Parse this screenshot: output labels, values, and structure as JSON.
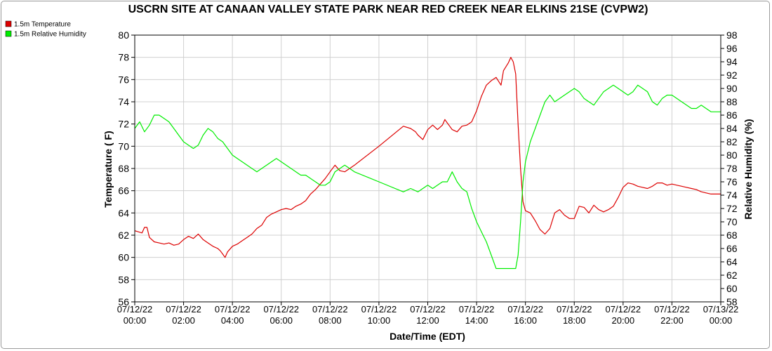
{
  "chart_data": {
    "type": "line",
    "title": "USCRN SITE AT CANAAN VALLEY STATE PARK NEAR RED CREEK NEAR ELKINS 21SE (CVPW2)",
    "xlabel": "Date/Time (EDT)",
    "ylabel_left": "Temperature ( F)",
    "ylabel_right": "Relative Humidity (%)",
    "x_ticks": [
      {
        "date": "07/12/22",
        "time": "00:00"
      },
      {
        "date": "07/12/22",
        "time": "02:00"
      },
      {
        "date": "07/12/22",
        "time": "04:00"
      },
      {
        "date": "07/12/22",
        "time": "06:00"
      },
      {
        "date": "07/12/22",
        "time": "08:00"
      },
      {
        "date": "07/12/22",
        "time": "10:00"
      },
      {
        "date": "07/12/22",
        "time": "12:00"
      },
      {
        "date": "07/12/22",
        "time": "14:00"
      },
      {
        "date": "07/12/22",
        "time": "16:00"
      },
      {
        "date": "07/12/22",
        "time": "18:00"
      },
      {
        "date": "07/12/22",
        "time": "20:00"
      },
      {
        "date": "07/12/22",
        "time": "22:00"
      },
      {
        "date": "07/13/22",
        "time": "00:00"
      }
    ],
    "x_range_hours": [
      0,
      24
    ],
    "ylim_left": [
      56,
      80
    ],
    "yticks_left": [
      56,
      58,
      60,
      62,
      64,
      66,
      68,
      70,
      72,
      74,
      76,
      78,
      80
    ],
    "ylim_right": [
      58,
      98
    ],
    "yticks_right": [
      58,
      60,
      62,
      64,
      66,
      68,
      70,
      72,
      74,
      76,
      78,
      80,
      82,
      84,
      86,
      88,
      90,
      92,
      94,
      96,
      98
    ],
    "grid": true,
    "legend_position": "top-left",
    "series": [
      {
        "name": "1.5m Temperature",
        "axis": "left",
        "color": "#dd0000",
        "points": [
          [
            0,
            62.4
          ],
          [
            0.3,
            62.2
          ],
          [
            0.4,
            62.7
          ],
          [
            0.5,
            62.7
          ],
          [
            0.6,
            61.8
          ],
          [
            0.8,
            61.4
          ],
          [
            1.0,
            61.3
          ],
          [
            1.2,
            61.2
          ],
          [
            1.4,
            61.3
          ],
          [
            1.6,
            61.1
          ],
          [
            1.8,
            61.2
          ],
          [
            2.0,
            61.6
          ],
          [
            2.2,
            61.9
          ],
          [
            2.4,
            61.7
          ],
          [
            2.6,
            62.1
          ],
          [
            2.8,
            61.6
          ],
          [
            3.0,
            61.3
          ],
          [
            3.2,
            61.0
          ],
          [
            3.4,
            60.8
          ],
          [
            3.5,
            60.6
          ],
          [
            3.6,
            60.3
          ],
          [
            3.7,
            60.0
          ],
          [
            3.8,
            60.5
          ],
          [
            4.0,
            61.0
          ],
          [
            4.2,
            61.2
          ],
          [
            4.4,
            61.5
          ],
          [
            4.6,
            61.8
          ],
          [
            4.8,
            62.1
          ],
          [
            5.0,
            62.6
          ],
          [
            5.2,
            62.9
          ],
          [
            5.4,
            63.6
          ],
          [
            5.6,
            63.9
          ],
          [
            5.8,
            64.1
          ],
          [
            6.0,
            64.3
          ],
          [
            6.2,
            64.4
          ],
          [
            6.4,
            64.3
          ],
          [
            6.6,
            64.6
          ],
          [
            6.8,
            64.8
          ],
          [
            7.0,
            65.1
          ],
          [
            7.2,
            65.7
          ],
          [
            7.4,
            66.1
          ],
          [
            7.6,
            66.6
          ],
          [
            7.8,
            67.1
          ],
          [
            8.0,
            67.7
          ],
          [
            8.2,
            68.3
          ],
          [
            8.4,
            67.8
          ],
          [
            8.6,
            67.7
          ],
          [
            8.8,
            68.0
          ],
          [
            9.0,
            68.3
          ],
          [
            10.0,
            70.0
          ],
          [
            11.0,
            71.8
          ],
          [
            11.3,
            71.6
          ],
          [
            11.5,
            71.3
          ],
          [
            11.6,
            71.0
          ],
          [
            11.8,
            70.6
          ],
          [
            12.0,
            71.5
          ],
          [
            12.2,
            71.9
          ],
          [
            12.4,
            71.5
          ],
          [
            12.6,
            71.9
          ],
          [
            12.7,
            72.4
          ],
          [
            12.8,
            72.1
          ],
          [
            12.9,
            71.8
          ],
          [
            13.0,
            71.5
          ],
          [
            13.2,
            71.3
          ],
          [
            13.4,
            71.8
          ],
          [
            13.6,
            71.9
          ],
          [
            13.8,
            72.2
          ],
          [
            14.0,
            73.2
          ],
          [
            14.2,
            74.5
          ],
          [
            14.4,
            75.5
          ],
          [
            14.6,
            75.9
          ],
          [
            14.8,
            76.2
          ],
          [
            15.0,
            75.5
          ],
          [
            15.1,
            76.8
          ],
          [
            15.3,
            77.5
          ],
          [
            15.4,
            78.0
          ],
          [
            15.5,
            77.6
          ],
          [
            15.6,
            76.5
          ],
          [
            15.7,
            72.0
          ],
          [
            15.8,
            68.0
          ],
          [
            15.9,
            65.0
          ],
          [
            16.0,
            64.2
          ],
          [
            16.2,
            64.0
          ],
          [
            16.4,
            63.3
          ],
          [
            16.6,
            62.5
          ],
          [
            16.8,
            62.1
          ],
          [
            17.0,
            62.6
          ],
          [
            17.2,
            64.0
          ],
          [
            17.4,
            64.3
          ],
          [
            17.6,
            63.8
          ],
          [
            17.8,
            63.5
          ],
          [
            18.0,
            63.5
          ],
          [
            18.2,
            64.6
          ],
          [
            18.4,
            64.5
          ],
          [
            18.6,
            64.0
          ],
          [
            18.8,
            64.7
          ],
          [
            19.0,
            64.3
          ],
          [
            19.2,
            64.1
          ],
          [
            19.4,
            64.3
          ],
          [
            19.6,
            64.6
          ],
          [
            19.8,
            65.4
          ],
          [
            20.0,
            66.3
          ],
          [
            20.2,
            66.7
          ],
          [
            20.4,
            66.6
          ],
          [
            20.6,
            66.4
          ],
          [
            20.8,
            66.3
          ],
          [
            21.0,
            66.2
          ],
          [
            21.2,
            66.4
          ],
          [
            21.4,
            66.7
          ],
          [
            21.6,
            66.7
          ],
          [
            21.8,
            66.5
          ],
          [
            22.0,
            66.6
          ],
          [
            22.2,
            66.5
          ],
          [
            22.4,
            66.4
          ],
          [
            22.6,
            66.3
          ],
          [
            22.8,
            66.2
          ],
          [
            23.0,
            66.1
          ],
          [
            23.2,
            65.9
          ],
          [
            23.4,
            65.8
          ],
          [
            23.6,
            65.7
          ],
          [
            24.0,
            65.7
          ]
        ]
      },
      {
        "name": "1.5m Relative Humidity",
        "axis": "right",
        "color": "#00ee00",
        "points": [
          [
            0,
            84.0
          ],
          [
            0.2,
            85.0
          ],
          [
            0.4,
            83.5
          ],
          [
            0.6,
            84.5
          ],
          [
            0.8,
            86.0
          ],
          [
            1.0,
            86.0
          ],
          [
            1.2,
            85.5
          ],
          [
            1.4,
            85.0
          ],
          [
            1.6,
            84.0
          ],
          [
            1.8,
            83.0
          ],
          [
            2.0,
            82.0
          ],
          [
            2.2,
            81.5
          ],
          [
            2.4,
            81.0
          ],
          [
            2.6,
            81.5
          ],
          [
            2.8,
            83.0
          ],
          [
            3.0,
            84.0
          ],
          [
            3.2,
            83.5
          ],
          [
            3.4,
            82.5
          ],
          [
            3.6,
            82.0
          ],
          [
            3.8,
            81.0
          ],
          [
            4.0,
            80.0
          ],
          [
            4.2,
            79.5
          ],
          [
            4.4,
            79.0
          ],
          [
            4.6,
            78.5
          ],
          [
            4.8,
            78.0
          ],
          [
            5.0,
            77.5
          ],
          [
            5.2,
            78.0
          ],
          [
            5.4,
            78.5
          ],
          [
            5.6,
            79.0
          ],
          [
            5.8,
            79.5
          ],
          [
            6.0,
            79.0
          ],
          [
            6.2,
            78.5
          ],
          [
            6.4,
            78.0
          ],
          [
            6.6,
            77.5
          ],
          [
            6.8,
            77.0
          ],
          [
            7.0,
            77.0
          ],
          [
            7.2,
            76.5
          ],
          [
            7.4,
            76.0
          ],
          [
            7.6,
            75.5
          ],
          [
            7.8,
            75.5
          ],
          [
            8.0,
            76.0
          ],
          [
            8.2,
            77.5
          ],
          [
            8.4,
            78.0
          ],
          [
            8.6,
            78.5
          ],
          [
            8.8,
            78.0
          ],
          [
            9.0,
            77.5
          ],
          [
            10.0,
            76.0
          ],
          [
            11.0,
            74.5
          ],
          [
            11.3,
            75.0
          ],
          [
            11.6,
            74.5
          ],
          [
            11.8,
            75.0
          ],
          [
            12.0,
            75.5
          ],
          [
            12.2,
            75.0
          ],
          [
            12.4,
            75.5
          ],
          [
            12.6,
            76.0
          ],
          [
            12.8,
            76.0
          ],
          [
            13.0,
            77.5
          ],
          [
            13.2,
            76.0
          ],
          [
            13.4,
            75.0
          ],
          [
            13.6,
            74.5
          ],
          [
            13.8,
            72.0
          ],
          [
            14.0,
            70.0
          ],
          [
            14.2,
            68.5
          ],
          [
            14.4,
            67.0
          ],
          [
            14.6,
            65.0
          ],
          [
            14.8,
            63.0
          ],
          [
            15.0,
            63.0
          ],
          [
            15.2,
            63.0
          ],
          [
            15.4,
            63.0
          ],
          [
            15.6,
            63.0
          ],
          [
            15.7,
            65.0
          ],
          [
            15.8,
            70.0
          ],
          [
            15.9,
            76.0
          ],
          [
            16.0,
            79.0
          ],
          [
            16.2,
            82.0
          ],
          [
            16.4,
            84.0
          ],
          [
            16.6,
            86.0
          ],
          [
            16.8,
            88.0
          ],
          [
            17.0,
            89.0
          ],
          [
            17.2,
            88.0
          ],
          [
            17.4,
            88.5
          ],
          [
            17.6,
            89.0
          ],
          [
            17.8,
            89.5
          ],
          [
            18.0,
            90.0
          ],
          [
            18.2,
            89.5
          ],
          [
            18.4,
            88.5
          ],
          [
            18.6,
            88.0
          ],
          [
            18.8,
            87.5
          ],
          [
            19.0,
            88.5
          ],
          [
            19.2,
            89.5
          ],
          [
            19.4,
            90.0
          ],
          [
            19.6,
            90.5
          ],
          [
            19.8,
            90.0
          ],
          [
            20.0,
            89.5
          ],
          [
            20.2,
            89.0
          ],
          [
            20.4,
            89.5
          ],
          [
            20.6,
            90.5
          ],
          [
            20.8,
            90.0
          ],
          [
            21.0,
            89.5
          ],
          [
            21.2,
            88.0
          ],
          [
            21.4,
            87.5
          ],
          [
            21.6,
            88.5
          ],
          [
            21.8,
            89.0
          ],
          [
            22.0,
            89.0
          ],
          [
            22.2,
            88.5
          ],
          [
            22.4,
            88.0
          ],
          [
            22.6,
            87.5
          ],
          [
            22.8,
            87.0
          ],
          [
            23.0,
            87.0
          ],
          [
            23.2,
            87.5
          ],
          [
            23.4,
            87.0
          ],
          [
            23.6,
            86.5
          ],
          [
            24.0,
            86.5
          ]
        ]
      }
    ]
  }
}
